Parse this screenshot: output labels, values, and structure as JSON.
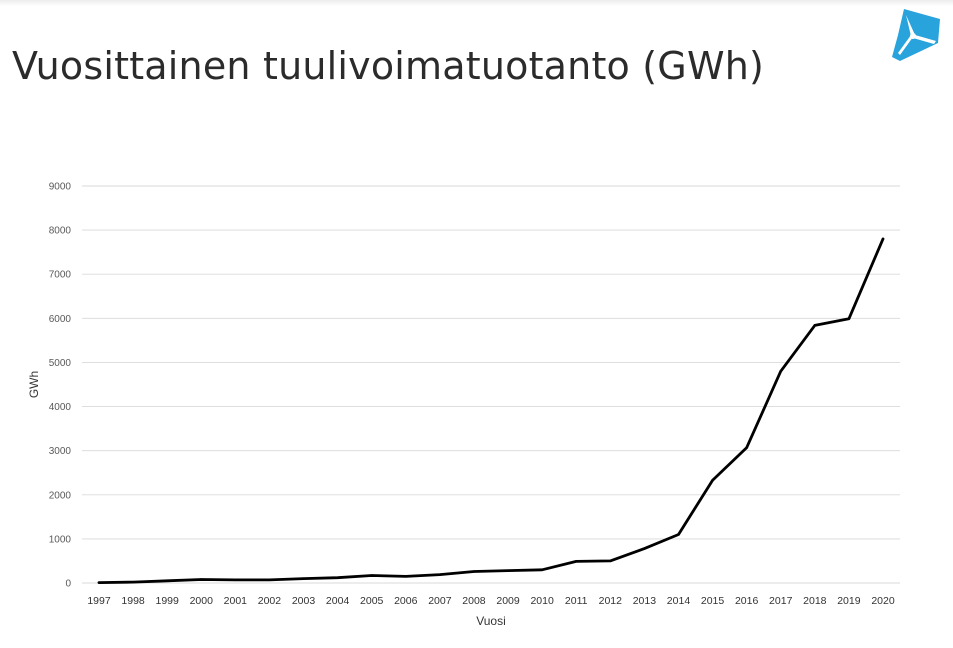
{
  "slide": {
    "title": "Vuosittainen tuulivoimatuotanto (GWh)",
    "logo_icon": "wind-turbine-logo-icon",
    "logo_color": "#29a3dc"
  },
  "chart_data": {
    "type": "line",
    "title": "",
    "xlabel": "Vuosi",
    "ylabel": "GWh",
    "ylim": [
      0,
      9000
    ],
    "yticks": [
      0,
      1000,
      2000,
      3000,
      4000,
      5000,
      6000,
      7000,
      8000,
      9000
    ],
    "grid": true,
    "x": [
      "1997",
      "1998",
      "1999",
      "2000",
      "2001",
      "2002",
      "2003",
      "2004",
      "2005",
      "2006",
      "2007",
      "2008",
      "2009",
      "2010",
      "2011",
      "2012",
      "2013",
      "2014",
      "2015",
      "2016",
      "2017",
      "2018",
      "2019",
      "2020"
    ],
    "series": [
      {
        "values": [
          10,
          20,
          50,
          80,
          70,
          70,
          100,
          120,
          170,
          150,
          190,
          260,
          280,
          300,
          490,
          500,
          780,
          1100,
          2330,
          3070,
          4800,
          5840,
          5990,
          7800
        ],
        "color": "#000000"
      }
    ],
    "grid_color": "#d9d9d9"
  }
}
